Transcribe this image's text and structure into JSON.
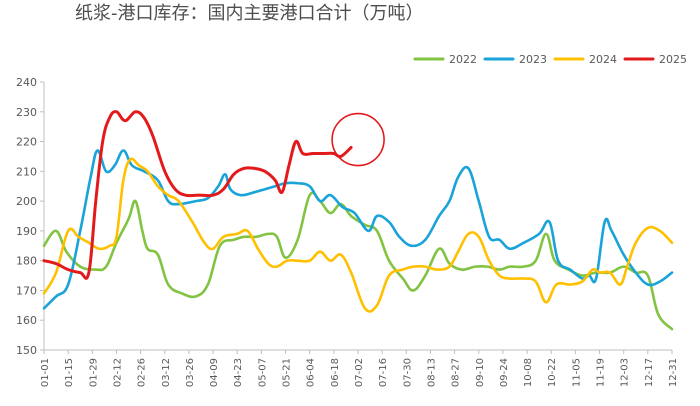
{
  "chart_data": {
    "type": "line",
    "title": "纸浆-港口库存：国内主要港口合计（万吨）",
    "xlabel": "",
    "ylabel": "",
    "ylim": [
      150,
      240
    ],
    "yticks": [
      150,
      160,
      170,
      180,
      190,
      200,
      210,
      220,
      230,
      240
    ],
    "x_range": [
      0,
      364
    ],
    "xticks": [
      {
        "label": "01-01",
        "day": 0
      },
      {
        "label": "01-15",
        "day": 14
      },
      {
        "label": "01-29",
        "day": 28
      },
      {
        "label": "02-12",
        "day": 42
      },
      {
        "label": "02-26",
        "day": 56
      },
      {
        "label": "03-12",
        "day": 70
      },
      {
        "label": "03-26",
        "day": 84
      },
      {
        "label": "04-09",
        "day": 98
      },
      {
        "label": "04-23",
        "day": 112
      },
      {
        "label": "05-07",
        "day": 126
      },
      {
        "label": "05-21",
        "day": 140
      },
      {
        "label": "06-04",
        "day": 154
      },
      {
        "label": "06-18",
        "day": 168
      },
      {
        "label": "07-02",
        "day": 182
      },
      {
        "label": "07-16",
        "day": 196
      },
      {
        "label": "07-30",
        "day": 210
      },
      {
        "label": "08-13",
        "day": 224
      },
      {
        "label": "08-27",
        "day": 238
      },
      {
        "label": "09-10",
        "day": 252
      },
      {
        "label": "09-24",
        "day": 266
      },
      {
        "label": "10-08",
        "day": 280
      },
      {
        "label": "10-22",
        "day": 294
      },
      {
        "label": "11-05",
        "day": 308
      },
      {
        "label": "11-19",
        "day": 322
      },
      {
        "label": "12-03",
        "day": 336
      },
      {
        "label": "12-17",
        "day": 350
      },
      {
        "label": "12-31",
        "day": 364
      }
    ],
    "grid": false,
    "legend_position": "top-right",
    "annotation": {
      "type": "circle",
      "center_day": 178,
      "center_value": 220
    },
    "series": [
      {
        "name": "2022",
        "color": "#82c341",
        "points": [
          [
            0,
            185
          ],
          [
            7,
            190
          ],
          [
            13,
            183
          ],
          [
            21,
            178
          ],
          [
            30,
            177
          ],
          [
            36,
            178
          ],
          [
            42,
            186
          ],
          [
            49,
            194
          ],
          [
            53,
            200
          ],
          [
            57,
            190
          ],
          [
            60,
            184
          ],
          [
            66,
            182
          ],
          [
            72,
            172
          ],
          [
            80,
            169
          ],
          [
            88,
            168
          ],
          [
            95,
            172
          ],
          [
            102,
            185
          ],
          [
            110,
            187
          ],
          [
            116,
            188
          ],
          [
            123,
            188
          ],
          [
            130,
            189
          ],
          [
            135,
            188
          ],
          [
            140,
            181
          ],
          [
            147,
            187
          ],
          [
            154,
            202
          ],
          [
            160,
            200
          ],
          [
            166,
            196
          ],
          [
            172,
            199
          ],
          [
            178,
            195
          ],
          [
            186,
            192
          ],
          [
            193,
            190
          ],
          [
            200,
            180
          ],
          [
            208,
            174
          ],
          [
            214,
            170
          ],
          [
            221,
            175
          ],
          [
            229,
            184
          ],
          [
            235,
            179
          ],
          [
            242,
            177
          ],
          [
            250,
            178
          ],
          [
            257,
            178
          ],
          [
            264,
            177
          ],
          [
            270,
            178
          ],
          [
            278,
            178
          ],
          [
            285,
            180
          ],
          [
            291,
            189
          ],
          [
            296,
            180
          ],
          [
            304,
            177
          ],
          [
            312,
            175
          ],
          [
            320,
            176
          ],
          [
            328,
            176
          ],
          [
            336,
            178
          ],
          [
            343,
            176
          ],
          [
            350,
            175
          ],
          [
            356,
            162
          ],
          [
            364,
            157
          ]
        ]
      },
      {
        "name": "2023",
        "color": "#1aa3d9",
        "points": [
          [
            0,
            164
          ],
          [
            7,
            168
          ],
          [
            14,
            172
          ],
          [
            21,
            190
          ],
          [
            27,
            208
          ],
          [
            31,
            217
          ],
          [
            36,
            210
          ],
          [
            41,
            212
          ],
          [
            46,
            217
          ],
          [
            51,
            212
          ],
          [
            58,
            210
          ],
          [
            66,
            207
          ],
          [
            72,
            200
          ],
          [
            78,
            199
          ],
          [
            88,
            200
          ],
          [
            95,
            201
          ],
          [
            101,
            205
          ],
          [
            105,
            209
          ],
          [
            108,
            204
          ],
          [
            114,
            202
          ],
          [
            122,
            203
          ],
          [
            128,
            204
          ],
          [
            134,
            205
          ],
          [
            140,
            206
          ],
          [
            147,
            206
          ],
          [
            154,
            205
          ],
          [
            160,
            200
          ],
          [
            166,
            202
          ],
          [
            173,
            198
          ],
          [
            180,
            196
          ],
          [
            188,
            190
          ],
          [
            193,
            195
          ],
          [
            200,
            193
          ],
          [
            206,
            188
          ],
          [
            213,
            185
          ],
          [
            221,
            187
          ],
          [
            229,
            195
          ],
          [
            235,
            200
          ],
          [
            240,
            208
          ],
          [
            246,
            211
          ],
          [
            252,
            200
          ],
          [
            258,
            188
          ],
          [
            264,
            187
          ],
          [
            270,
            184
          ],
          [
            278,
            186
          ],
          [
            287,
            189
          ],
          [
            293,
            193
          ],
          [
            298,
            180
          ],
          [
            305,
            177
          ],
          [
            312,
            174
          ],
          [
            316,
            175
          ],
          [
            320,
            174
          ],
          [
            325,
            193
          ],
          [
            329,
            190
          ],
          [
            336,
            182
          ],
          [
            343,
            176
          ],
          [
            350,
            172
          ],
          [
            357,
            173
          ],
          [
            364,
            176
          ]
        ]
      },
      {
        "name": "2024",
        "color": "#ffc000",
        "points": [
          [
            0,
            169
          ],
          [
            7,
            176
          ],
          [
            14,
            190
          ],
          [
            20,
            188
          ],
          [
            26,
            186
          ],
          [
            32,
            184
          ],
          [
            38,
            185
          ],
          [
            42,
            188
          ],
          [
            46,
            207
          ],
          [
            50,
            214
          ],
          [
            55,
            212
          ],
          [
            60,
            210
          ],
          [
            66,
            205
          ],
          [
            72,
            202
          ],
          [
            78,
            200
          ],
          [
            86,
            193
          ],
          [
            93,
            186
          ],
          [
            98,
            184
          ],
          [
            104,
            188
          ],
          [
            112,
            189
          ],
          [
            118,
            190
          ],
          [
            124,
            184
          ],
          [
            130,
            179
          ],
          [
            135,
            178
          ],
          [
            141,
            180
          ],
          [
            147,
            180
          ],
          [
            154,
            180
          ],
          [
            160,
            183
          ],
          [
            166,
            180
          ],
          [
            172,
            182
          ],
          [
            178,
            176
          ],
          [
            186,
            164
          ],
          [
            193,
            165
          ],
          [
            200,
            175
          ],
          [
            208,
            177
          ],
          [
            214,
            178
          ],
          [
            221,
            178
          ],
          [
            228,
            177
          ],
          [
            235,
            178
          ],
          [
            240,
            183
          ],
          [
            246,
            189
          ],
          [
            252,
            188
          ],
          [
            258,
            180
          ],
          [
            264,
            175
          ],
          [
            270,
            174
          ],
          [
            278,
            174
          ],
          [
            285,
            173
          ],
          [
            291,
            166
          ],
          [
            297,
            172
          ],
          [
            305,
            172
          ],
          [
            312,
            173
          ],
          [
            318,
            177
          ],
          [
            322,
            176
          ],
          [
            328,
            176
          ],
          [
            334,
            172
          ],
          [
            338,
            178
          ],
          [
            343,
            186
          ],
          [
            350,
            191
          ],
          [
            357,
            190
          ],
          [
            364,
            186
          ]
        ]
      },
      {
        "name": "2025",
        "color": "#e31a1c",
        "points": [
          [
            0,
            180
          ],
          [
            7,
            179
          ],
          [
            14,
            177
          ],
          [
            21,
            176
          ],
          [
            26,
            176
          ],
          [
            30,
            200
          ],
          [
            34,
            220
          ],
          [
            38,
            228
          ],
          [
            42,
            230
          ],
          [
            47,
            227
          ],
          [
            53,
            230
          ],
          [
            58,
            228
          ],
          [
            63,
            222
          ],
          [
            70,
            210
          ],
          [
            76,
            204
          ],
          [
            82,
            202
          ],
          [
            90,
            202
          ],
          [
            98,
            202
          ],
          [
            104,
            204
          ],
          [
            110,
            209
          ],
          [
            116,
            211
          ],
          [
            122,
            211
          ],
          [
            128,
            210
          ],
          [
            134,
            207
          ],
          [
            138,
            203
          ],
          [
            142,
            212
          ],
          [
            146,
            220
          ],
          [
            150,
            216
          ],
          [
            156,
            216
          ],
          [
            162,
            216
          ],
          [
            168,
            216
          ],
          [
            172,
            215
          ],
          [
            178,
            218
          ]
        ]
      }
    ]
  }
}
